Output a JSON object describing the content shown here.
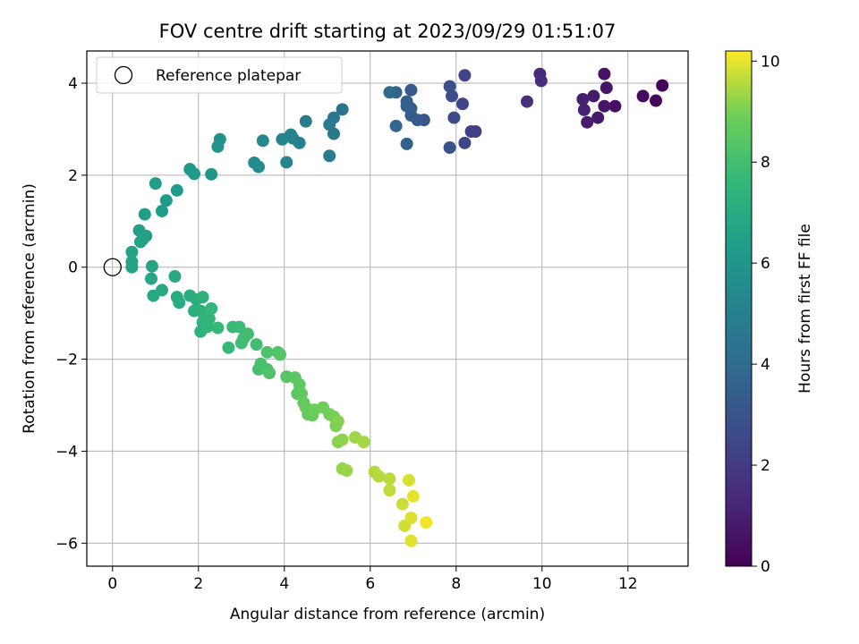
{
  "chart_data": {
    "type": "scatter",
    "title": "FOV centre drift starting at 2023/09/29 01:51:07",
    "xlabel": "Angular distance from reference (arcmin)",
    "ylabel": "Rotation from reference (arcmin)",
    "xlim": [
      -0.6,
      13.4
    ],
    "ylim": [
      -6.5,
      4.7
    ],
    "xticks": [
      0,
      2,
      4,
      6,
      8,
      10,
      12
    ],
    "yticks": [
      -6,
      -4,
      -2,
      0,
      2,
      4
    ],
    "grid": true,
    "legend": {
      "placement": "top-left",
      "entries": [
        "Reference platepar"
      ]
    },
    "reference_point": {
      "name": "Reference platepar",
      "x": 0,
      "y": 0
    },
    "colorbar": {
      "label": "Hours from first FF file",
      "min": 0,
      "max": 10.2,
      "ticks": [
        0,
        2,
        4,
        6,
        8,
        10
      ],
      "colormap": "viridis"
    },
    "points": [
      {
        "x": 12.8,
        "y": 3.95,
        "c": 0.1
      },
      {
        "x": 12.65,
        "y": 3.62,
        "c": 0.2
      },
      {
        "x": 12.35,
        "y": 3.72,
        "c": 0.3
      },
      {
        "x": 11.7,
        "y": 3.5,
        "c": 0.5
      },
      {
        "x": 11.45,
        "y": 4.2,
        "c": 0.55
      },
      {
        "x": 11.5,
        "y": 3.9,
        "c": 0.65
      },
      {
        "x": 11.45,
        "y": 3.5,
        "c": 0.7
      },
      {
        "x": 11.3,
        "y": 3.25,
        "c": 0.8
      },
      {
        "x": 11.2,
        "y": 3.72,
        "c": 0.85
      },
      {
        "x": 11.05,
        "y": 3.15,
        "c": 0.9
      },
      {
        "x": 10.95,
        "y": 3.65,
        "c": 1.0
      },
      {
        "x": 10.98,
        "y": 3.42,
        "c": 1.05
      },
      {
        "x": 9.95,
        "y": 4.2,
        "c": 1.4
      },
      {
        "x": 9.98,
        "y": 4.05,
        "c": 1.45
      },
      {
        "x": 9.65,
        "y": 3.6,
        "c": 1.6
      },
      {
        "x": 8.45,
        "y": 2.95,
        "c": 2.2
      },
      {
        "x": 8.35,
        "y": 2.95,
        "c": 2.25
      },
      {
        "x": 8.2,
        "y": 4.17,
        "c": 2.3
      },
      {
        "x": 8.15,
        "y": 3.55,
        "c": 2.4
      },
      {
        "x": 8.2,
        "y": 2.7,
        "c": 2.45
      },
      {
        "x": 7.95,
        "y": 3.25,
        "c": 2.6
      },
      {
        "x": 7.9,
        "y": 3.72,
        "c": 2.7
      },
      {
        "x": 7.85,
        "y": 3.93,
        "c": 2.8
      },
      {
        "x": 7.85,
        "y": 2.6,
        "c": 2.9
      },
      {
        "x": 7.25,
        "y": 3.2,
        "c": 3.1
      },
      {
        "x": 7.1,
        "y": 3.2,
        "c": 3.2
      },
      {
        "x": 6.95,
        "y": 3.85,
        "c": 3.3
      },
      {
        "x": 6.95,
        "y": 3.3,
        "c": 3.35
      },
      {
        "x": 6.95,
        "y": 3.45,
        "c": 3.4
      },
      {
        "x": 6.85,
        "y": 3.6,
        "c": 3.45
      },
      {
        "x": 6.85,
        "y": 3.5,
        "c": 3.5
      },
      {
        "x": 6.85,
        "y": 2.68,
        "c": 3.6
      },
      {
        "x": 6.6,
        "y": 3.8,
        "c": 3.7
      },
      {
        "x": 6.6,
        "y": 3.07,
        "c": 3.8
      },
      {
        "x": 6.45,
        "y": 3.8,
        "c": 3.9
      },
      {
        "x": 5.35,
        "y": 3.43,
        "c": 4.4
      },
      {
        "x": 5.15,
        "y": 3.25,
        "c": 4.5
      },
      {
        "x": 5.15,
        "y": 2.9,
        "c": 4.6
      },
      {
        "x": 5.05,
        "y": 3.1,
        "c": 4.65
      },
      {
        "x": 5.05,
        "y": 2.42,
        "c": 4.75
      },
      {
        "x": 4.5,
        "y": 3.17,
        "c": 4.9
      },
      {
        "x": 4.35,
        "y": 2.7,
        "c": 5.0
      },
      {
        "x": 4.15,
        "y": 2.88,
        "c": 5.05
      },
      {
        "x": 4.2,
        "y": 2.8,
        "c": 5.1
      },
      {
        "x": 4.05,
        "y": 2.28,
        "c": 5.2
      },
      {
        "x": 3.95,
        "y": 2.78,
        "c": 5.25
      },
      {
        "x": 3.5,
        "y": 2.75,
        "c": 5.4
      },
      {
        "x": 3.4,
        "y": 2.18,
        "c": 5.5
      },
      {
        "x": 3.3,
        "y": 2.27,
        "c": 5.55
      },
      {
        "x": 2.5,
        "y": 2.78,
        "c": 5.85
      },
      {
        "x": 2.45,
        "y": 2.62,
        "c": 5.9
      },
      {
        "x": 2.3,
        "y": 2.02,
        "c": 6.0
      },
      {
        "x": 1.9,
        "y": 2.03,
        "c": 6.1
      },
      {
        "x": 1.8,
        "y": 2.13,
        "c": 6.15
      },
      {
        "x": 1.5,
        "y": 1.67,
        "c": 6.25
      },
      {
        "x": 1.25,
        "y": 1.45,
        "c": 6.3
      },
      {
        "x": 1.15,
        "y": 1.22,
        "c": 6.35
      },
      {
        "x": 1.0,
        "y": 1.82,
        "c": 6.4
      },
      {
        "x": 0.75,
        "y": 1.15,
        "c": 6.45
      },
      {
        "x": 0.78,
        "y": 0.68,
        "c": 6.5
      },
      {
        "x": 0.7,
        "y": 0.6,
        "c": 6.55
      },
      {
        "x": 0.65,
        "y": 0.55,
        "c": 6.55
      },
      {
        "x": 0.62,
        "y": 0.8,
        "c": 6.5
      },
      {
        "x": 0.45,
        "y": 0.33,
        "c": 6.6
      },
      {
        "x": 0.45,
        "y": 0.12,
        "c": 6.65
      },
      {
        "x": 0.45,
        "y": 0.0,
        "c": 6.7
      },
      {
        "x": 0.92,
        "y": 0.02,
        "c": 6.75
      },
      {
        "x": 0.9,
        "y": -0.25,
        "c": 6.8
      },
      {
        "x": 0.95,
        "y": -0.62,
        "c": 6.85
      },
      {
        "x": 1.15,
        "y": -0.5,
        "c": 6.9
      },
      {
        "x": 1.45,
        "y": -0.2,
        "c": 6.95
      },
      {
        "x": 1.5,
        "y": -0.65,
        "c": 7.0
      },
      {
        "x": 1.55,
        "y": -0.77,
        "c": 7.05
      },
      {
        "x": 1.8,
        "y": -0.62,
        "c": 7.1
      },
      {
        "x": 1.95,
        "y": -0.7,
        "c": 7.15
      },
      {
        "x": 1.9,
        "y": -0.95,
        "c": 7.2
      },
      {
        "x": 2.05,
        "y": -0.95,
        "c": 7.25
      },
      {
        "x": 2.1,
        "y": -0.65,
        "c": 7.3
      },
      {
        "x": 2.1,
        "y": -1.2,
        "c": 7.35
      },
      {
        "x": 2.05,
        "y": -1.4,
        "c": 7.4
      },
      {
        "x": 2.15,
        "y": -1.05,
        "c": 7.45
      },
      {
        "x": 2.2,
        "y": -1.3,
        "c": 7.5
      },
      {
        "x": 2.25,
        "y": -1.12,
        "c": 7.55
      },
      {
        "x": 2.3,
        "y": -0.9,
        "c": 7.6
      },
      {
        "x": 2.45,
        "y": -1.32,
        "c": 7.65
      },
      {
        "x": 2.7,
        "y": -1.75,
        "c": 7.7
      },
      {
        "x": 2.8,
        "y": -1.3,
        "c": 7.75
      },
      {
        "x": 2.95,
        "y": -1.3,
        "c": 7.8
      },
      {
        "x": 3.0,
        "y": -1.65,
        "c": 7.85
      },
      {
        "x": 3.05,
        "y": -1.55,
        "c": 7.9
      },
      {
        "x": 3.15,
        "y": -1.45,
        "c": 7.95
      },
      {
        "x": 3.35,
        "y": -1.68,
        "c": 8.0
      },
      {
        "x": 3.4,
        "y": -2.22,
        "c": 8.05
      },
      {
        "x": 3.45,
        "y": -2.1,
        "c": 8.1
      },
      {
        "x": 3.6,
        "y": -2.22,
        "c": 8.15
      },
      {
        "x": 3.6,
        "y": -1.85,
        "c": 8.2
      },
      {
        "x": 3.65,
        "y": -2.3,
        "c": 8.25
      },
      {
        "x": 3.85,
        "y": -1.85,
        "c": 8.3
      },
      {
        "x": 3.9,
        "y": -1.9,
        "c": 8.35
      },
      {
        "x": 4.05,
        "y": -2.38,
        "c": 8.4
      },
      {
        "x": 4.25,
        "y": -2.4,
        "c": 8.45
      },
      {
        "x": 4.3,
        "y": -2.75,
        "c": 8.5
      },
      {
        "x": 4.35,
        "y": -2.55,
        "c": 8.55
      },
      {
        "x": 4.4,
        "y": -2.75,
        "c": 8.6
      },
      {
        "x": 4.45,
        "y": -2.95,
        "c": 8.65
      },
      {
        "x": 4.5,
        "y": -3.05,
        "c": 8.7
      },
      {
        "x": 4.55,
        "y": -3.2,
        "c": 8.75
      },
      {
        "x": 4.65,
        "y": -3.22,
        "c": 8.8
      },
      {
        "x": 4.7,
        "y": -3.1,
        "c": 8.85
      },
      {
        "x": 4.9,
        "y": -3.05,
        "c": 8.9
      },
      {
        "x": 5.05,
        "y": -3.2,
        "c": 8.95
      },
      {
        "x": 5.15,
        "y": -3.25,
        "c": 9.0
      },
      {
        "x": 5.2,
        "y": -3.45,
        "c": 9.05
      },
      {
        "x": 5.25,
        "y": -3.35,
        "c": 9.1
      },
      {
        "x": 5.25,
        "y": -3.8,
        "c": 9.15
      },
      {
        "x": 5.35,
        "y": -3.75,
        "c": 9.2
      },
      {
        "x": 5.35,
        "y": -4.38,
        "c": 9.25
      },
      {
        "x": 5.45,
        "y": -4.42,
        "c": 9.3
      },
      {
        "x": 5.65,
        "y": -3.7,
        "c": 9.35
      },
      {
        "x": 5.85,
        "y": -3.8,
        "c": 9.4
      },
      {
        "x": 6.1,
        "y": -4.45,
        "c": 9.5
      },
      {
        "x": 6.2,
        "y": -4.55,
        "c": 9.55
      },
      {
        "x": 6.45,
        "y": -4.6,
        "c": 9.6
      },
      {
        "x": 6.45,
        "y": -4.85,
        "c": 9.65
      },
      {
        "x": 6.75,
        "y": -5.15,
        "c": 9.75
      },
      {
        "x": 6.8,
        "y": -5.62,
        "c": 9.8
      },
      {
        "x": 6.9,
        "y": -4.63,
        "c": 9.85
      },
      {
        "x": 6.95,
        "y": -5.45,
        "c": 9.9
      },
      {
        "x": 6.95,
        "y": -5.95,
        "c": 9.95
      },
      {
        "x": 7.0,
        "y": -4.98,
        "c": 10.0
      },
      {
        "x": 7.3,
        "y": -5.55,
        "c": 10.1
      }
    ]
  }
}
